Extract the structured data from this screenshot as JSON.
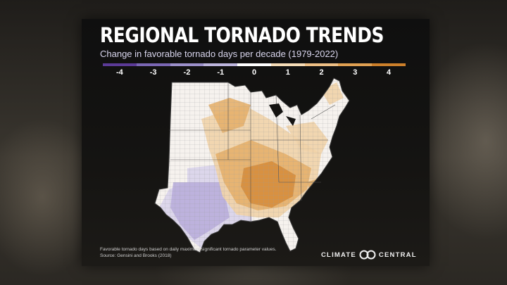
{
  "title": "REGIONAL TORNADO TRENDS",
  "subtitle": "Change in favorable tornado days per decade (1979-2022)",
  "legend": {
    "labels": [
      "-4",
      "-3",
      "-2",
      "-1",
      "0",
      "1",
      "2",
      "3",
      "4"
    ],
    "colors": [
      "#5b3a96",
      "#7a66b3",
      "#9b8fc9",
      "#bdb5dd",
      "#ffffff",
      "#f5dcb7",
      "#eebf85",
      "#e0a052",
      "#cc7f2a"
    ]
  },
  "footnote": {
    "line1": "Favorable tornado days based on daily maximum significant tornado parameter values.",
    "line2": "Source: Gensini and Brooks (2018)"
  },
  "logo": {
    "left": "CLIMATE",
    "right": "CENTRAL"
  },
  "map_colors": {
    "land_base": "#f6f2ee",
    "increase_light": "#f1d3a8",
    "increase_mid": "#e6b06c",
    "increase_strong": "#d68d3c",
    "decrease_light": "#d9d3ea",
    "decrease_mid": "#b9aedb",
    "borders": "#6b6b6b"
  }
}
